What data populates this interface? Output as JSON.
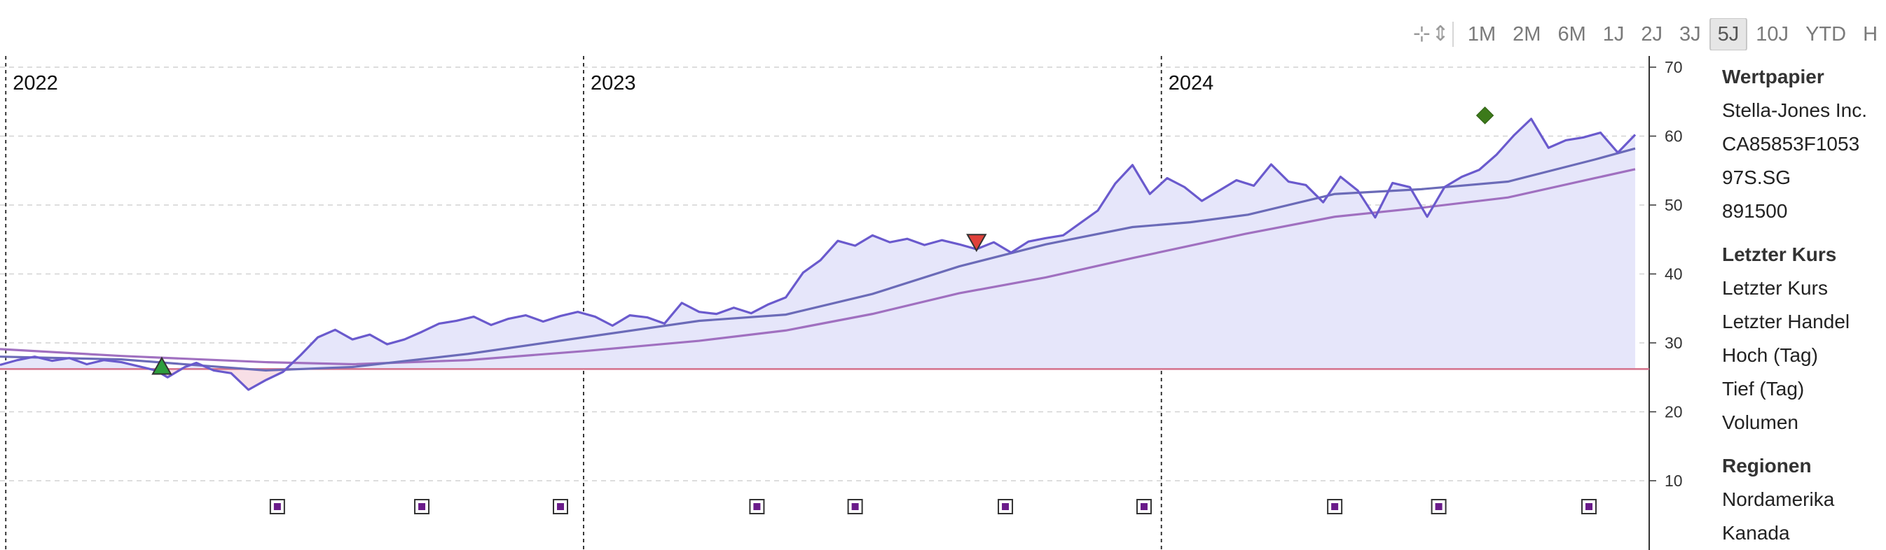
{
  "toolbar": {
    "icons": [
      {
        "name": "crosshair-icon",
        "glyph": "⊹"
      },
      {
        "name": "vertical-resize-icon",
        "glyph": "⇕"
      }
    ],
    "ranges": [
      {
        "label": "1M",
        "active": false
      },
      {
        "label": "2M",
        "active": false
      },
      {
        "label": "6M",
        "active": false
      },
      {
        "label": "1J",
        "active": false
      },
      {
        "label": "2J",
        "active": false
      },
      {
        "label": "3J",
        "active": false
      },
      {
        "label": "5J",
        "active": true
      },
      {
        "label": "10J",
        "active": false
      },
      {
        "label": "YTD",
        "active": false
      },
      {
        "label": "H",
        "active": false
      }
    ]
  },
  "panel": {
    "sections": [
      {
        "title": "Wertpapier",
        "items": [
          "Stella-Jones Inc.",
          "CA85853F1053",
          "97S.SG",
          "891500"
        ]
      },
      {
        "title": "Letzter Kurs",
        "items": [
          "Letzter Kurs",
          "Letzter Handel",
          "Hoch (Tag)",
          "Tief (Tag)",
          "Volumen"
        ]
      },
      {
        "title": "Regionen",
        "items": [
          "Nordamerika",
          "Kanada"
        ]
      }
    ]
  },
  "chart_data": {
    "type": "line",
    "x_unit": "year",
    "xlim": [
      2021.99,
      2024.82
    ],
    "ylim": [
      0,
      70
    ],
    "yticks": [
      10,
      20,
      30,
      40,
      50,
      60,
      70
    ],
    "year_labels": [
      "2022",
      "2023",
      "2024"
    ],
    "year_positions": [
      2022,
      2023,
      2024
    ],
    "grid": true,
    "colors": {
      "price": "#6a5acd",
      "price_fill": "#e6e6fa",
      "below_fill": "#f8dfe6",
      "ma_short": "#6b6bb8",
      "ma_long": "#a070c0",
      "reference": "#d4708a",
      "marker_low": "#2e9e3e",
      "marker_sell": "#e0403a",
      "marker_high": "#3c7a1a",
      "event_marker": "#6a1b8a"
    },
    "reference_line": 26.2,
    "series": [
      {
        "key": "price",
        "x": [
          2021.99,
          2022.02,
          2022.05,
          2022.08,
          2022.11,
          2022.14,
          2022.17,
          2022.2,
          2022.23,
          2022.26,
          2022.28,
          2022.31,
          2022.33,
          2022.36,
          2022.39,
          2022.42,
          2022.45,
          2022.48,
          2022.51,
          2022.54,
          2022.57,
          2022.6,
          2022.63,
          2022.66,
          2022.69,
          2022.72,
          2022.75,
          2022.78,
          2022.81,
          2022.84,
          2022.87,
          2022.9,
          2022.93,
          2022.96,
          2022.99,
          2023.02,
          2023.05,
          2023.08,
          2023.11,
          2023.14,
          2023.17,
          2023.2,
          2023.23,
          2023.26,
          2023.29,
          2023.32,
          2023.35,
          2023.38,
          2023.41,
          2023.44,
          2023.47,
          2023.5,
          2023.53,
          2023.56,
          2023.59,
          2023.62,
          2023.65,
          2023.68,
          2023.71,
          2023.74,
          2023.77,
          2023.8,
          2023.83,
          2023.86,
          2023.89,
          2023.92,
          2023.95,
          2023.98,
          2024.01,
          2024.04,
          2024.07,
          2024.1,
          2024.13,
          2024.16,
          2024.19,
          2024.22,
          2024.25,
          2024.28,
          2024.31,
          2024.34,
          2024.37,
          2024.4,
          2024.43,
          2024.46,
          2024.49,
          2024.52,
          2024.55,
          2024.58,
          2024.61,
          2024.64,
          2024.67,
          2024.7,
          2024.73,
          2024.76,
          2024.79,
          2024.82
        ],
        "y": [
          26.8,
          27.5,
          28.0,
          27.4,
          27.8,
          26.9,
          27.5,
          27.2,
          26.6,
          26.0,
          25.0,
          26.5,
          27.1,
          26.0,
          25.6,
          23.2,
          24.6,
          25.8,
          28.2,
          30.8,
          31.9,
          30.5,
          31.2,
          29.8,
          30.5,
          31.6,
          32.8,
          33.2,
          33.8,
          32.6,
          33.5,
          34.0,
          33.1,
          33.9,
          34.5,
          33.8,
          32.5,
          34.0,
          33.7,
          32.8,
          35.8,
          34.5,
          34.2,
          35.1,
          34.3,
          35.6,
          36.6,
          40.2,
          42.0,
          44.8,
          44.1,
          45.6,
          44.6,
          45.1,
          44.2,
          44.9,
          44.3,
          43.6,
          44.6,
          43.1,
          44.7,
          45.2,
          45.6,
          47.4,
          49.2,
          53.1,
          55.8,
          51.6,
          53.9,
          52.6,
          50.6,
          52.1,
          53.6,
          52.8,
          55.9,
          53.4,
          52.9,
          50.4,
          54.1,
          52.1,
          48.2,
          53.2,
          52.6,
          48.3,
          52.6,
          54.1,
          55.1,
          57.3,
          60.1,
          62.5,
          58.3,
          59.4,
          59.8,
          60.5,
          57.6,
          60.2
        ]
      },
      {
        "key": "ma_short",
        "x": [
          2021.99,
          2022.2,
          2022.45,
          2022.6,
          2022.8,
          2023.0,
          2023.2,
          2023.35,
          2023.5,
          2023.65,
          2023.8,
          2023.95,
          2024.05,
          2024.15,
          2024.3,
          2024.45,
          2024.6,
          2024.75,
          2024.82
        ],
        "y": [
          28.0,
          27.6,
          26.0,
          26.5,
          28.4,
          30.8,
          33.2,
          34.1,
          37.1,
          41.1,
          44.3,
          46.8,
          47.5,
          48.6,
          51.6,
          52.3,
          53.4,
          56.6,
          58.2
        ]
      },
      {
        "key": "ma_long",
        "x": [
          2021.99,
          2022.2,
          2022.45,
          2022.6,
          2022.8,
          2023.0,
          2023.2,
          2023.35,
          2023.5,
          2023.65,
          2023.8,
          2023.95,
          2024.05,
          2024.15,
          2024.3,
          2024.45,
          2024.6,
          2024.75,
          2024.82
        ],
        "y": [
          29.1,
          28.1,
          27.2,
          26.9,
          27.5,
          28.8,
          30.3,
          31.8,
          34.2,
          37.2,
          39.5,
          42.3,
          44.1,
          45.9,
          48.3,
          49.6,
          51.1,
          53.9,
          55.2
        ]
      }
    ],
    "markers": [
      {
        "type": "triangle-up",
        "x": 2022.27,
        "y": 26.5,
        "color_key": "marker_low"
      },
      {
        "type": "triangle-down",
        "x": 2023.68,
        "y": 44.6,
        "color_key": "marker_sell"
      },
      {
        "type": "diamond",
        "x": 2024.56,
        "y": 63.0,
        "color_key": "marker_high"
      }
    ],
    "events": [
      2022.47,
      2022.72,
      2022.96,
      2023.3,
      2023.47,
      2023.73,
      2023.97,
      2024.3,
      2024.48,
      2024.74
    ]
  }
}
